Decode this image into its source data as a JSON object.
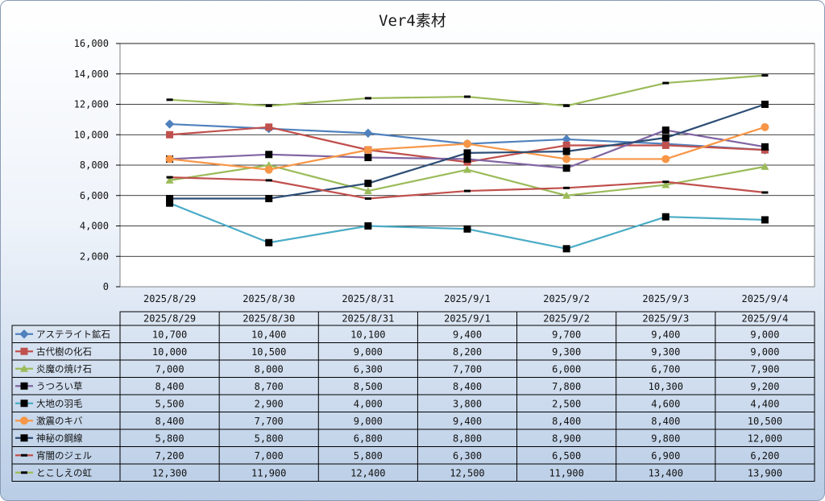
{
  "chart_data": {
    "type": "line",
    "title": "Ver4素材",
    "xlabel": "",
    "ylabel": "",
    "ylim": [
      0,
      16000
    ],
    "yticks": [
      "0",
      "2,000",
      "4,000",
      "6,000",
      "8,000",
      "10,000",
      "12,000",
      "14,000",
      "16,000"
    ],
    "grid": true,
    "legend": "data-table-below",
    "categories": [
      "2025/8/29",
      "2025/8/30",
      "2025/8/31",
      "2025/9/1",
      "2025/9/2",
      "2025/9/3",
      "2025/9/4"
    ],
    "series": [
      {
        "name": "アステライト鉱石",
        "color": "#4f81bd",
        "marker": "diamond",
        "values": [
          10700,
          10400,
          10100,
          9400,
          9700,
          9400,
          9000
        ],
        "labels": [
          "10,700",
          "10,400",
          "10,100",
          "9,400",
          "9,700",
          "9,400",
          "9,000"
        ]
      },
      {
        "name": "古代樹の化石",
        "color": "#c0504d",
        "marker": "square",
        "values": [
          10000,
          10500,
          9000,
          8200,
          9300,
          9300,
          9000
        ],
        "labels": [
          "10,000",
          "10,500",
          "9,000",
          "8,200",
          "9,300",
          "9,300",
          "9,000"
        ]
      },
      {
        "name": "炎魔の焼け石",
        "color": "#9bbb59",
        "marker": "triangle",
        "values": [
          7000,
          8000,
          6300,
          7700,
          6000,
          6700,
          7900
        ],
        "labels": [
          "7,000",
          "8,000",
          "6,300",
          "7,700",
          "6,000",
          "6,700",
          "7,900"
        ]
      },
      {
        "name": "うつろい草",
        "color": "#8064a2",
        "marker": "black-square",
        "values": [
          8400,
          8700,
          8500,
          8400,
          7800,
          10300,
          9200
        ],
        "labels": [
          "8,400",
          "8,700",
          "8,500",
          "8,400",
          "7,800",
          "10,300",
          "9,200"
        ]
      },
      {
        "name": "大地の羽毛",
        "color": "#4bacc6",
        "marker": "black-square",
        "values": [
          5500,
          2900,
          4000,
          3800,
          2500,
          4600,
          4400
        ],
        "labels": [
          "5,500",
          "2,900",
          "4,000",
          "3,800",
          "2,500",
          "4,600",
          "4,400"
        ]
      },
      {
        "name": "激震のキバ",
        "color": "#f79646",
        "marker": "circle",
        "values": [
          8400,
          7700,
          9000,
          9400,
          8400,
          8400,
          10500
        ],
        "labels": [
          "8,400",
          "7,700",
          "9,000",
          "9,400",
          "8,400",
          "8,400",
          "10,500"
        ]
      },
      {
        "name": "神秘の鋼線",
        "color": "#2c4d75",
        "marker": "black-square",
        "values": [
          5800,
          5800,
          6800,
          8800,
          8900,
          9800,
          12000
        ],
        "labels": [
          "5,800",
          "5,800",
          "6,800",
          "8,800",
          "8,900",
          "9,800",
          "12,000"
        ]
      },
      {
        "name": "宵闇のジェル",
        "color": "#c0504d",
        "marker": "dash",
        "values": [
          7200,
          7000,
          5800,
          6300,
          6500,
          6900,
          6200
        ],
        "labels": [
          "7,200",
          "7,000",
          "5,800",
          "6,300",
          "6,500",
          "6,900",
          "6,200"
        ]
      },
      {
        "name": "とこしえの虹",
        "color": "#9bbb59",
        "marker": "dash",
        "values": [
          12300,
          11900,
          12400,
          12500,
          11900,
          13400,
          13900
        ],
        "labels": [
          "12,300",
          "11,900",
          "12,400",
          "12,500",
          "11,900",
          "13,400",
          "13,900"
        ]
      }
    ]
  }
}
